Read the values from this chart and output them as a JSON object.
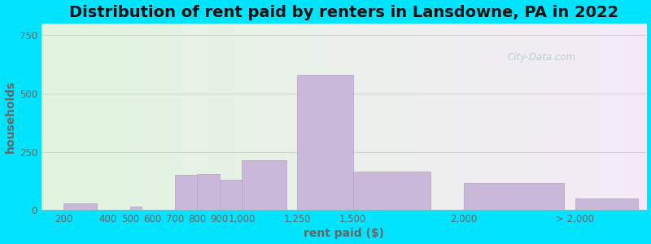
{
  "title": "Distribution of rent paid by renters in Lansdowne, PA in 2022",
  "xlabel": "rent paid ($)",
  "ylabel": "households",
  "bar_labels": [
    "200",
    "400",
    "500",
    "600",
    "700",
    "800",
    "900",
    "1,000",
    "1,250",
    "1,500",
    "2,000",
    "> 2,000"
  ],
  "bar_heights": [
    30,
    0,
    15,
    0,
    150,
    155,
    130,
    215,
    580,
    165,
    115,
    50
  ],
  "bar_color": "#c9b8d8",
  "bar_edge_color": "#b8a8cc",
  "yticks": [
    0,
    250,
    500,
    750
  ],
  "ylim": [
    0,
    800
  ],
  "xlim_left": 100,
  "xlim_right": 2820,
  "bg_outer": "#00e5ff",
  "grid_color": "#e8c8cc",
  "title_fontsize": 14,
  "title_color": "#111111",
  "axis_label_fontsize": 10,
  "tick_fontsize": 8.5,
  "tick_color": "#666666",
  "watermark_text": "City-Data.com",
  "x_positions": [
    200,
    400,
    500,
    600,
    700,
    800,
    900,
    1000,
    1250,
    1500,
    2000,
    2500
  ],
  "bar_widths": [
    150,
    50,
    50,
    50,
    100,
    100,
    100,
    200,
    250,
    350,
    450,
    280
  ]
}
